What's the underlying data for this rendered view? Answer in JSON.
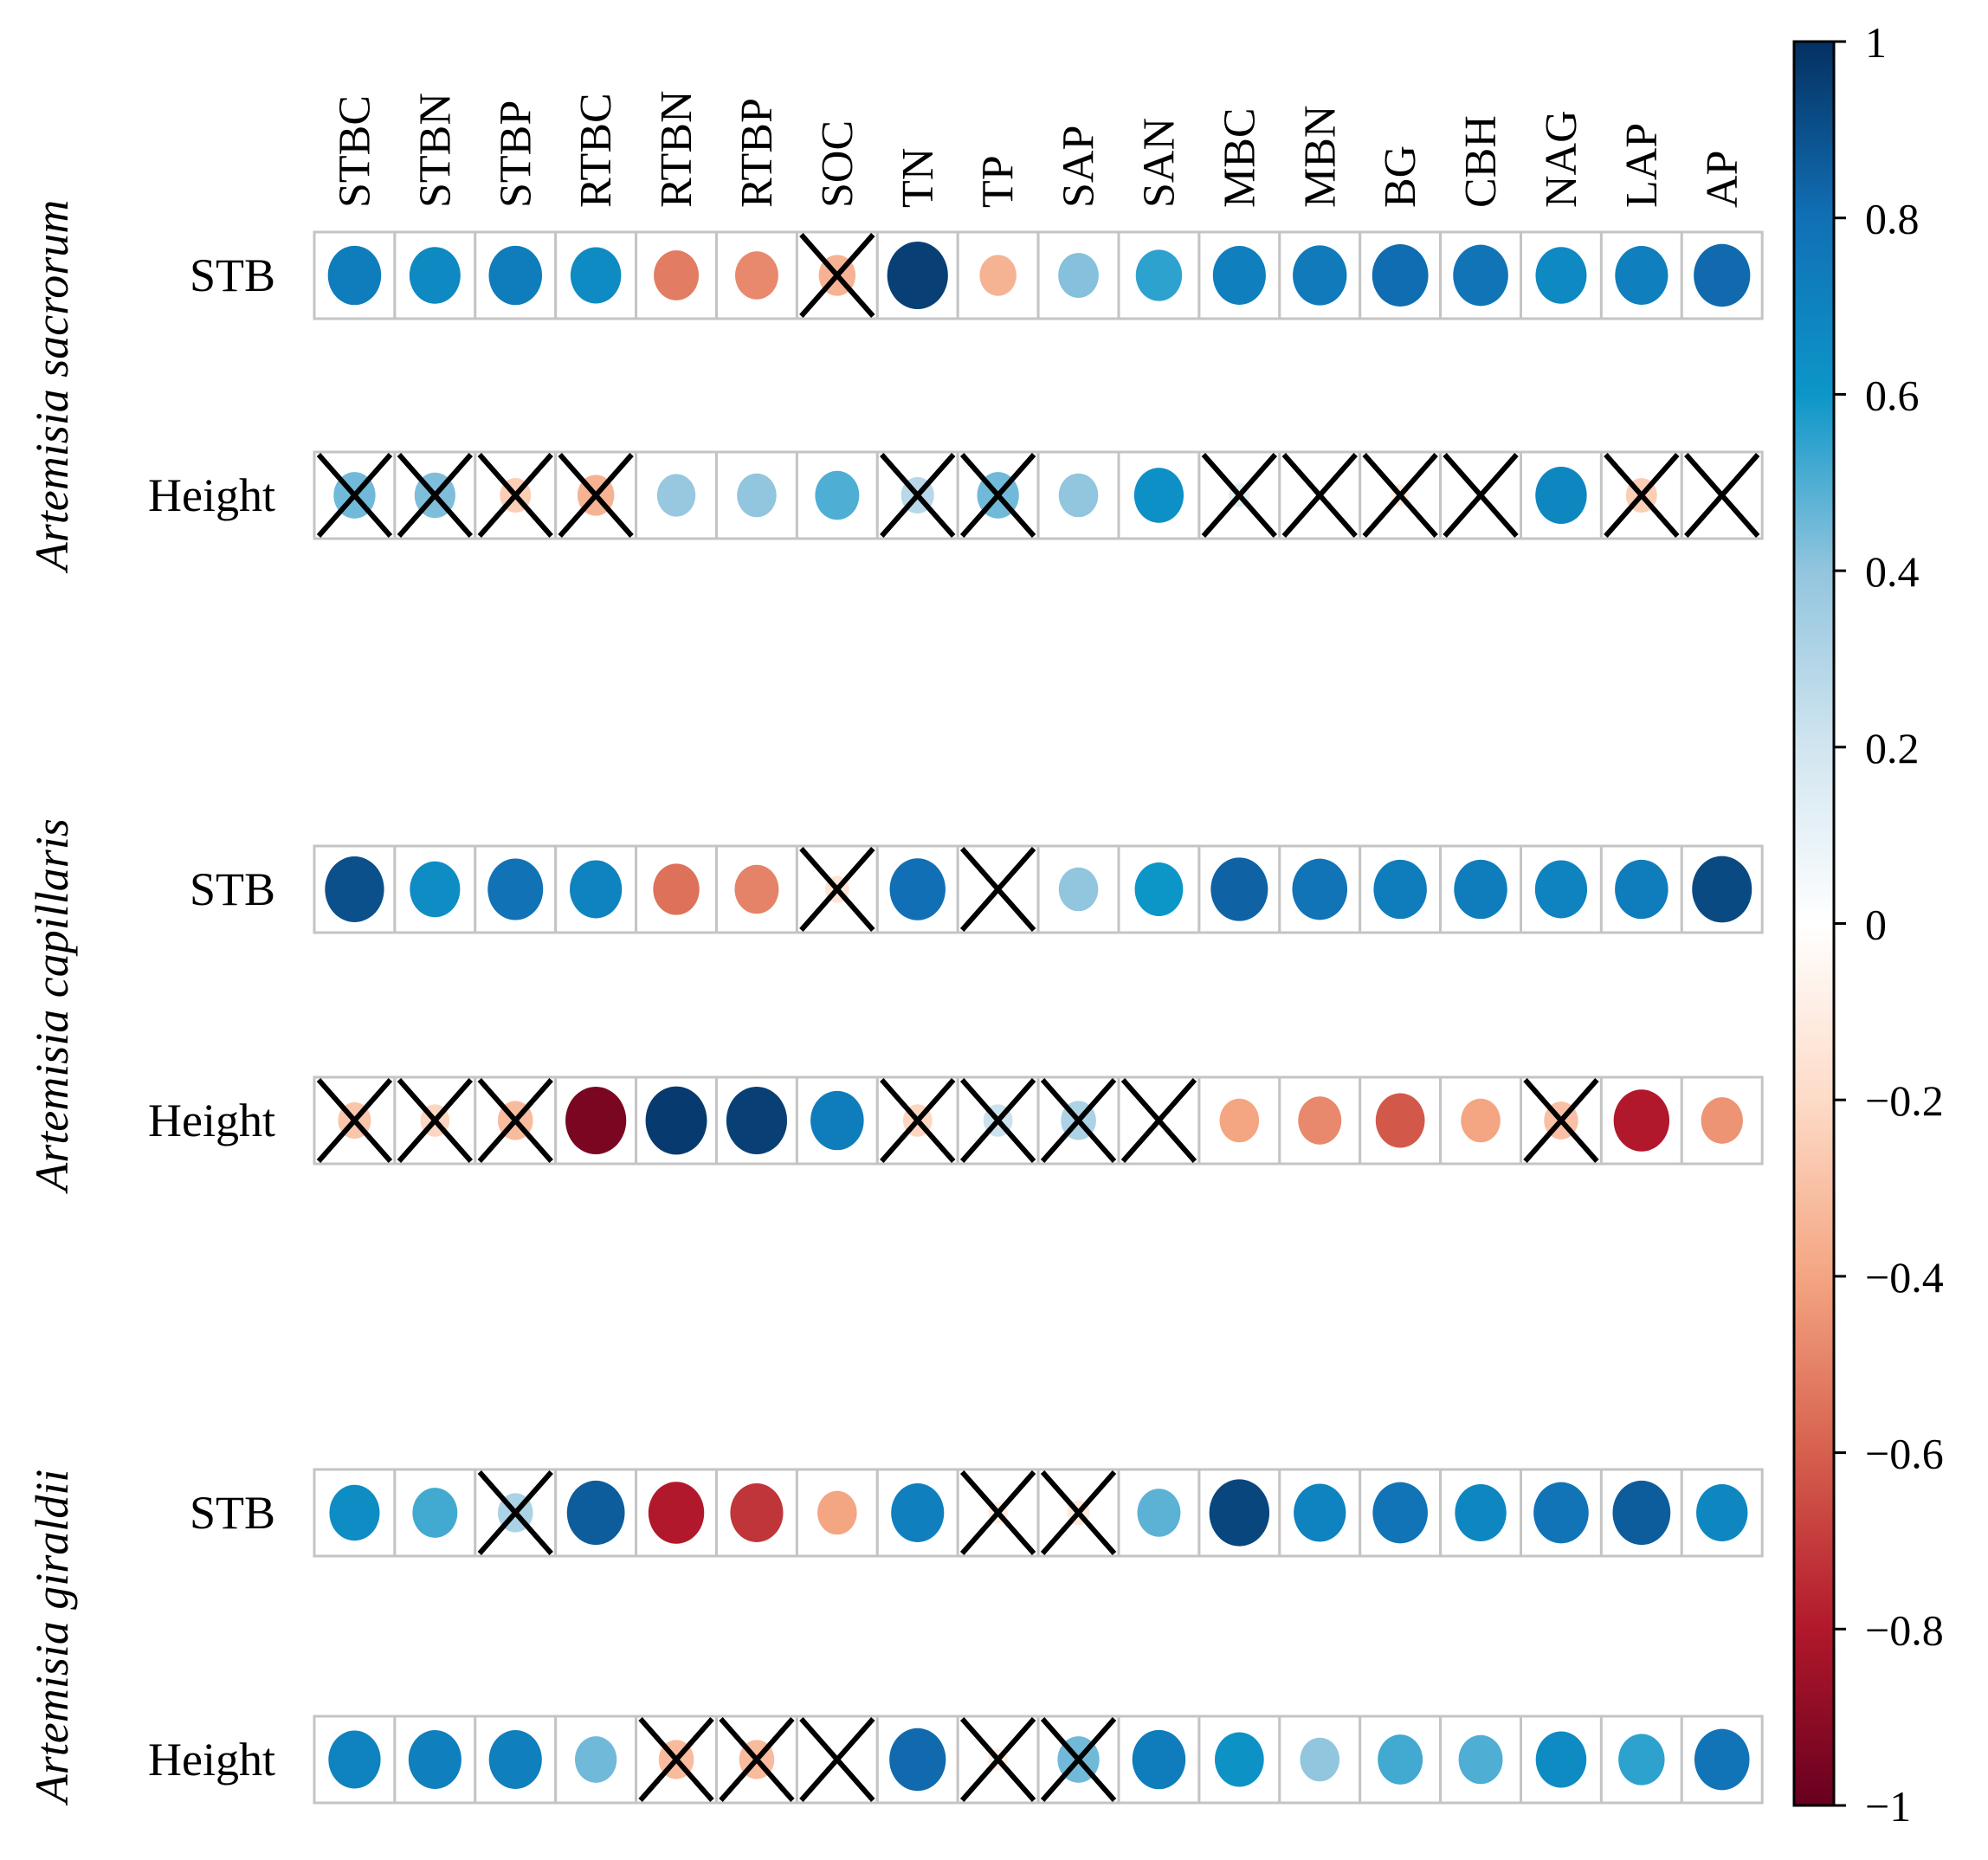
{
  "chart_data": {
    "type": "heatmap",
    "subtype": "correlation-circle-plot",
    "columns": [
      "STBC",
      "STBN",
      "STBP",
      "RTBC",
      "RTBN",
      "RTBP",
      "SOC",
      "TN",
      "TP",
      "SAP",
      "SAN",
      "MBC",
      "MBN",
      "BG",
      "CBH",
      "NAG",
      "LAP",
      "AP"
    ],
    "colorbar": {
      "min": -1,
      "max": 1,
      "ticks": [
        1,
        0.8,
        0.6,
        0.4,
        0.2,
        0,
        -0.2,
        -0.4,
        -0.6,
        -0.8,
        -1
      ],
      "tick_labels": [
        "1",
        "0.8",
        "0.6",
        "0.4",
        "0.2",
        "0",
        "−0.2",
        "−0.4",
        "−0.6",
        "−0.8",
        "−1"
      ],
      "colors": [
        "#67001f",
        "#b2182b",
        "#d6604d",
        "#f4a582",
        "#fddbc7",
        "#f7f7f7",
        "#d1e5f0",
        "#92c5de",
        "#4393c3",
        "#2166ac",
        "#053061"
      ],
      "color_anchors": [
        {
          "v": -1.0,
          "c": "#67001f"
        },
        {
          "v": -0.8,
          "c": "#b2182b"
        },
        {
          "v": -0.6,
          "c": "#d6604d"
        },
        {
          "v": -0.4,
          "c": "#f4a582"
        },
        {
          "v": -0.2,
          "c": "#fddbc7"
        },
        {
          "v": 0.0,
          "c": "#ffffff"
        },
        {
          "v": 0.2,
          "c": "#d1e5f0"
        },
        {
          "v": 0.4,
          "c": "#92c5de"
        },
        {
          "v": 0.6,
          "c": "#0c96c8"
        },
        {
          "v": 0.8,
          "c": "#1170b5"
        },
        {
          "v": 1.0,
          "c": "#053061"
        }
      ]
    },
    "groups": [
      {
        "species": "Artemisia sacrorum",
        "rows": [
          {
            "label": "STB",
            "values": [
              0.73,
              0.67,
              0.73,
              0.66,
              -0.52,
              -0.48,
              -0.35,
              0.95,
              -0.35,
              0.42,
              0.55,
              0.72,
              0.75,
              0.81,
              0.78,
              0.67,
              0.72,
              0.82
            ],
            "nonsignificant": [
              false,
              false,
              false,
              false,
              false,
              false,
              true,
              false,
              false,
              false,
              false,
              false,
              false,
              false,
              false,
              false,
              false,
              false
            ]
          },
          {
            "label": "Height",
            "values": [
              0.45,
              0.43,
              -0.25,
              -0.35,
              0.38,
              0.4,
              0.5,
              0.28,
              0.45,
              0.4,
              0.63,
              0.12,
              0.03,
              -0.1,
              0.02,
              0.68,
              -0.25,
              0.02
            ],
            "nonsignificant": [
              true,
              true,
              true,
              true,
              false,
              false,
              false,
              true,
              true,
              false,
              false,
              true,
              true,
              true,
              true,
              false,
              true,
              true
            ]
          }
        ]
      },
      {
        "species": "Artemisia capillaris",
        "rows": [
          {
            "label": "STB",
            "values": [
              0.9,
              0.65,
              0.79,
              0.7,
              -0.55,
              -0.5,
              -0.15,
              0.8,
              0.02,
              0.4,
              0.6,
              0.84,
              0.78,
              0.73,
              0.73,
              0.7,
              0.73,
              0.92
            ],
            "nonsignificant": [
              false,
              false,
              false,
              false,
              false,
              false,
              true,
              false,
              true,
              false,
              false,
              false,
              false,
              false,
              false,
              false,
              false,
              false
            ]
          },
          {
            "label": "Height",
            "values": [
              -0.28,
              -0.22,
              -0.32,
              -0.95,
              0.97,
              0.95,
              0.73,
              -0.22,
              0.22,
              0.32,
              0.02,
              -0.4,
              -0.48,
              -0.62,
              -0.4,
              -0.3,
              -0.8,
              -0.45
            ],
            "nonsignificant": [
              true,
              true,
              true,
              false,
              false,
              false,
              false,
              true,
              true,
              true,
              true,
              false,
              false,
              false,
              false,
              true,
              false,
              false
            ]
          }
        ]
      },
      {
        "species": "Artemisia giraldii",
        "rows": [
          {
            "label": "STB",
            "values": [
              0.65,
              0.52,
              0.32,
              0.86,
              -0.8,
              -0.72,
              -0.4,
              0.72,
              -0.1,
              -0.13,
              0.48,
              0.93,
              0.7,
              0.78,
              0.68,
              0.78,
              0.86,
              0.68
            ],
            "nonsignificant": [
              false,
              false,
              true,
              false,
              false,
              false,
              false,
              false,
              true,
              true,
              false,
              false,
              false,
              false,
              false,
              false,
              false,
              false
            ]
          },
          {
            "label": "Height",
            "values": [
              0.7,
              0.72,
              0.72,
              0.45,
              -0.32,
              -0.32,
              0.0,
              0.82,
              -0.1,
              0.45,
              0.73,
              0.62,
              0.4,
              0.52,
              0.5,
              0.66,
              0.55,
              0.78
            ],
            "nonsignificant": [
              false,
              false,
              false,
              false,
              true,
              true,
              true,
              false,
              true,
              true,
              false,
              false,
              false,
              false,
              false,
              false,
              false,
              false
            ]
          }
        ]
      }
    ]
  }
}
